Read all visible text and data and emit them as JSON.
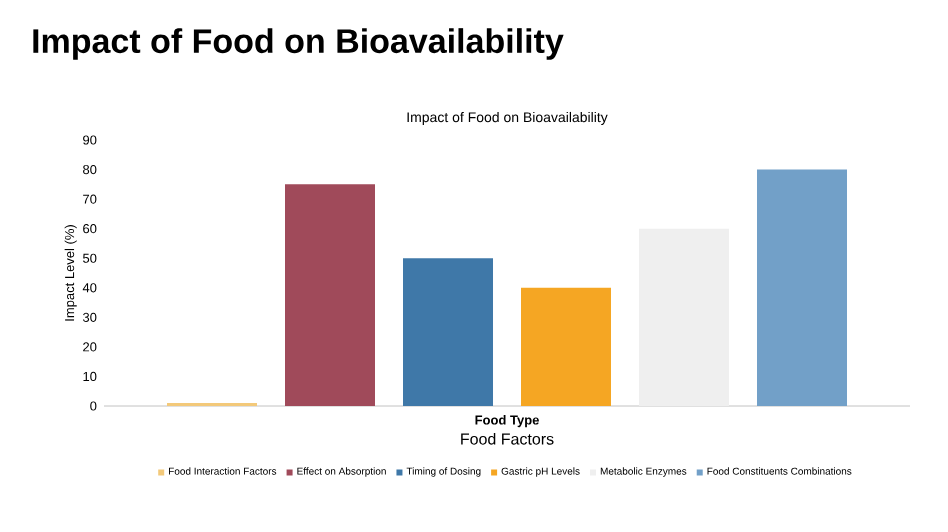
{
  "chart_data": {
    "type": "bar",
    "title": "Impact of Food on Bioavailability",
    "subtitle": "Impact of Food on Bioavailability",
    "xlabel": "Food Factors",
    "ylabel": "Impact Level (%)",
    "categories": [
      "Food Type"
    ],
    "series": [
      {
        "name": "Food Interaction Factors",
        "color": "#f3c97a",
        "values": [
          1
        ]
      },
      {
        "name": "Effect on Absorption",
        "color": "#a04a5a",
        "values": [
          75
        ]
      },
      {
        "name": "Timing of Dosing",
        "color": "#3f78a8",
        "values": [
          50
        ]
      },
      {
        "name": "Gastric pH Levels",
        "color": "#f5a623",
        "values": [
          40
        ]
      },
      {
        "name": "Metabolic Enzymes",
        "color": "#efefef",
        "values": [
          60
        ]
      },
      {
        "name": "Food Constituents Combinations",
        "color": "#72a0c8",
        "values": [
          80
        ]
      }
    ],
    "ylim": [
      0,
      90
    ],
    "yticks": [
      0,
      10,
      20,
      30,
      40,
      50,
      60,
      70,
      80,
      90
    ],
    "legend": "bottom"
  }
}
